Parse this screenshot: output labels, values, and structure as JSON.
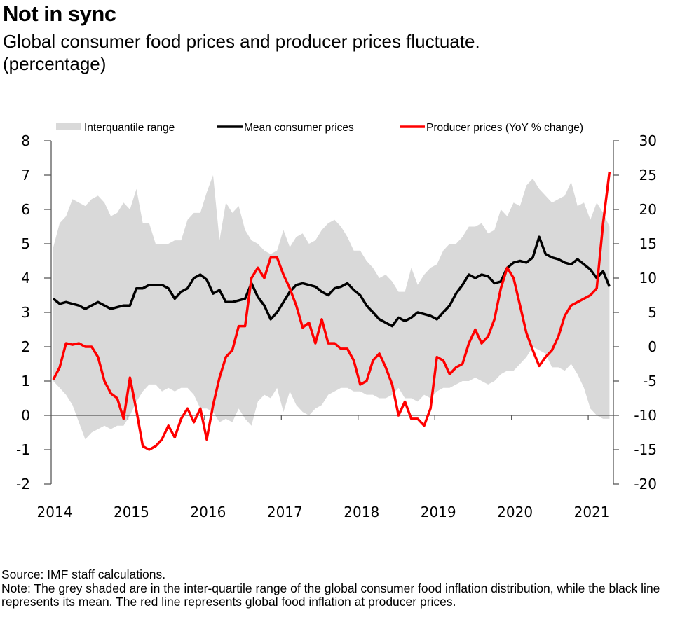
{
  "header": {
    "title": "Not in sync",
    "subtitle": "Global consumer food prices and producer prices fluctuate.",
    "unit_note": "(percentage)"
  },
  "footer": {
    "source": "Source: IMF staff calculations.",
    "note": "Note: The grey shaded are in the inter-quartile range of the global consumer food inflation distribution, while the black line represents its mean. The red line represents global food inflation at producer prices."
  },
  "colors": {
    "band": "#d9d9d9",
    "mean": "#000000",
    "producer": "#ff0000",
    "axis": "#595959"
  },
  "chart_data": {
    "type": "line",
    "title": "Not in sync",
    "subtitle": "Global consumer food prices and producer prices fluctuate. (percentage)",
    "xlabel": "",
    "ylabel_left": "percentage",
    "ylabel_right": "Producer prices (YoY % change)",
    "x_ticks": [
      "2014",
      "2015",
      "2016",
      "2017",
      "2018",
      "2019",
      "2020",
      "2021"
    ],
    "x_start": "2014-01",
    "x_step": "month",
    "ylim_left": [
      -2,
      8
    ],
    "yticks_left": [
      "8",
      "7",
      "6",
      "5",
      "4",
      "3",
      "2",
      "1",
      "0",
      "-1",
      "-2"
    ],
    "ylim_right": [
      -20,
      30
    ],
    "yticks_right": [
      "30",
      "25",
      "20",
      "15",
      "10",
      "5",
      "0",
      "-5",
      "-10",
      "-15",
      "-20"
    ],
    "grid": false,
    "legend_position": "top",
    "legend": [
      {
        "name": "Interquantile range",
        "kind": "band"
      },
      {
        "name": "Mean consumer prices",
        "kind": "line"
      },
      {
        "name": "Producer prices (YoY % change)",
        "kind": "line"
      }
    ],
    "series": [
      {
        "name": "Interquantile range (upper)",
        "axis": "left",
        "values": [
          4.9,
          5.6,
          5.8,
          6.3,
          6.2,
          6.1,
          6.3,
          6.4,
          6.2,
          5.8,
          5.9,
          6.2,
          6.0,
          6.6,
          5.6,
          5.6,
          5.0,
          5.0,
          5.0,
          5.1,
          5.1,
          5.7,
          5.9,
          5.9,
          6.5,
          7.0,
          5.1,
          6.2,
          5.9,
          6.1,
          5.4,
          5.1,
          5.0,
          4.8,
          4.7,
          4.8,
          5.4,
          4.9,
          5.2,
          5.3,
          5.0,
          5.1,
          5.4,
          5.6,
          5.7,
          5.5,
          5.2,
          4.8,
          4.8,
          4.5,
          4.3,
          4.0,
          4.1,
          3.9,
          3.6,
          3.6,
          4.3,
          3.8,
          4.1,
          4.3,
          4.4,
          4.8,
          5.0,
          5.0,
          5.2,
          5.5,
          5.5,
          5.6,
          5.3,
          5.4,
          6.0,
          5.8,
          6.2,
          6.1,
          6.7,
          6.9,
          6.6,
          6.4,
          6.2,
          6.3,
          6.4,
          6.8,
          6.1,
          6.2,
          5.7,
          6.2,
          5.9,
          5.5
        ],
        "lower": [
          1.0,
          0.8,
          0.6,
          0.3,
          -0.2,
          -0.7,
          -0.5,
          -0.4,
          -0.3,
          -0.4,
          -0.3,
          -0.3,
          0.0,
          0.4,
          0.7,
          0.9,
          0.9,
          0.7,
          0.8,
          0.7,
          0.8,
          0.8,
          0.6,
          0.2,
          0.2,
          0.1,
          -0.2,
          -0.1,
          -0.2,
          0.2,
          -0.1,
          -0.3,
          0.4,
          0.6,
          0.5,
          0.8,
          0.1,
          0.7,
          0.3,
          0.1,
          0.0,
          0.2,
          0.3,
          0.6,
          0.7,
          0.8,
          0.8,
          0.7,
          0.7,
          0.6,
          0.6,
          0.5,
          0.5,
          0.6,
          0.8,
          0.5,
          0.5,
          0.4,
          0.6,
          0.5,
          0.7,
          0.8,
          0.8,
          0.9,
          1.0,
          1.0,
          1.1,
          1.0,
          0.9,
          1.0,
          1.2,
          1.3,
          1.3,
          1.5,
          1.7,
          2.0,
          1.9,
          1.8,
          1.4,
          1.4,
          1.3,
          1.5,
          1.2,
          0.8,
          0.2,
          0.0,
          -0.1,
          -0.1
        ]
      },
      {
        "name": "Mean consumer prices",
        "axis": "left",
        "values": [
          3.4,
          3.25,
          3.3,
          3.25,
          3.2,
          3.1,
          3.2,
          3.3,
          3.2,
          3.1,
          3.15,
          3.2,
          3.2,
          3.7,
          3.7,
          3.8,
          3.8,
          3.8,
          3.7,
          3.4,
          3.6,
          3.7,
          4.0,
          4.1,
          3.95,
          3.55,
          3.65,
          3.3,
          3.3,
          3.35,
          3.4,
          3.85,
          3.45,
          3.2,
          2.8,
          3.0,
          3.3,
          3.6,
          3.8,
          3.85,
          3.8,
          3.75,
          3.6,
          3.5,
          3.7,
          3.75,
          3.85,
          3.65,
          3.5,
          3.2,
          3.0,
          2.8,
          2.7,
          2.6,
          2.85,
          2.75,
          2.85,
          3.0,
          2.95,
          2.9,
          2.8,
          3.0,
          3.2,
          3.55,
          3.8,
          4.1,
          4.0,
          4.1,
          4.05,
          3.85,
          3.9,
          4.3,
          4.45,
          4.5,
          4.45,
          4.6,
          5.2,
          4.7,
          4.6,
          4.55,
          4.45,
          4.4,
          4.55,
          4.4,
          4.25,
          4.0,
          4.2,
          3.75
        ]
      },
      {
        "name": "Producer prices (YoY % change)",
        "axis": "right",
        "values": [
          -4.8,
          -3.0,
          0.5,
          0.3,
          0.5,
          0.0,
          0.0,
          -1.5,
          -5.0,
          -6.8,
          -7.5,
          -10.5,
          -4.5,
          -9.3,
          -14.5,
          -15.0,
          -14.5,
          -13.5,
          -11.5,
          -13.2,
          -10.5,
          -9.0,
          -11.0,
          -9.0,
          -13.5,
          -8.5,
          -4.5,
          -1.5,
          -0.5,
          3.0,
          3.0,
          10.0,
          11.5,
          10.0,
          13.0,
          13.0,
          10.5,
          8.5,
          6.0,
          2.8,
          3.5,
          0.5,
          4.0,
          0.5,
          0.5,
          -0.3,
          -0.3,
          -2.0,
          -5.5,
          -5.0,
          -2.0,
          -1.0,
          -3.0,
          -5.5,
          -10.0,
          -8.0,
          -10.5,
          -10.5,
          -11.5,
          -9.0,
          -1.5,
          -2.0,
          -4.0,
          -3.0,
          -2.5,
          0.5,
          2.5,
          0.5,
          1.5,
          4.0,
          8.5,
          11.5,
          10.0,
          6.0,
          2.0,
          -0.5,
          -2.8,
          -1.5,
          -0.5,
          1.5,
          4.5,
          6.0,
          6.5,
          7.0,
          7.5,
          8.5,
          18.0,
          25.5
        ]
      }
    ]
  }
}
